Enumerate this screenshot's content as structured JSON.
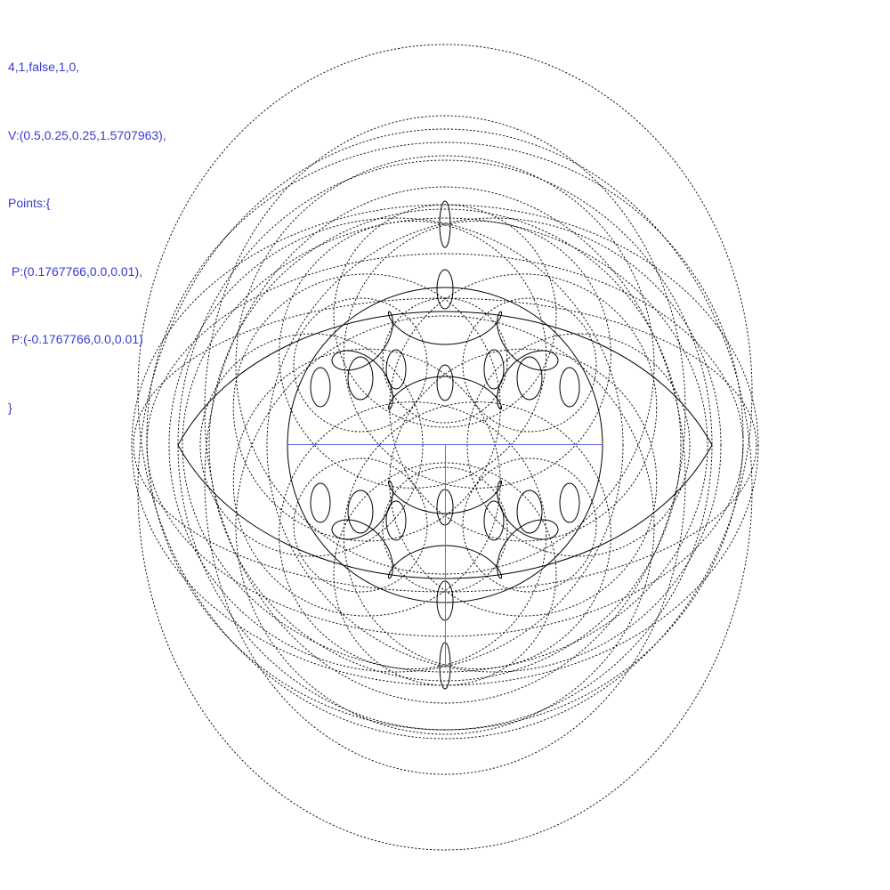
{
  "parameters": {
    "lines": [
      "4,1,false,1,0,",
      "V:(0.5,0.25,0.25,1.5707963),",
      "Points:{",
      " P:(0.1767766,0.0,0.01),",
      " P:(-0.1767766,0.0,0.01)",
      "}"
    ]
  },
  "colors": {
    "text": "#3a3ad0",
    "axes": "#6a6ae6",
    "curve": "#000000"
  }
}
